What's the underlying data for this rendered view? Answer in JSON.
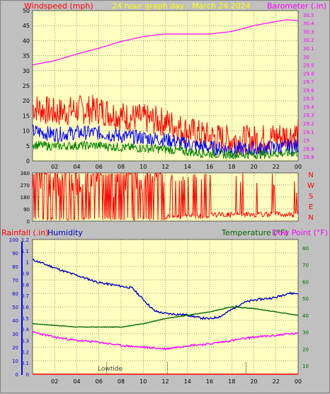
{
  "colors": {
    "plot_bg": "#ffffc0",
    "windspeed": "#ff0000",
    "gust_mid": "#0000ff",
    "wind_low": "#008000",
    "barometer": "#ff00ff",
    "title": "#ffff00",
    "humidity": "#0000c0",
    "temperature": "#006600",
    "dew_point": "#ff00ff",
    "rainfall": "#ff0000"
  },
  "header": {
    "windspeed_label": "Windspeed (mph)",
    "title": "24 hour graph day - March 24 2024",
    "barometer_label": "Barometer (.in)"
  },
  "lower_header": {
    "rainfall_label": "Rainfall (.in)",
    "humidity_label": "Humidity",
    "temperature_label": "Temperature (°F)",
    "dew_point_label": "Dew Point (°F)"
  },
  "chart_data": [
    {
      "type": "line",
      "name": "wind-barometer",
      "x_ticks": [
        "02",
        "04",
        "06",
        "08",
        "10",
        "12",
        "14",
        "16",
        "18",
        "20",
        "22",
        "00"
      ],
      "y_left_ticks": [
        "0",
        "5",
        "10",
        "15",
        "20",
        "25",
        "30",
        "35",
        "40",
        "45",
        "50"
      ],
      "y_right_ticks": [
        "28.8",
        "28.9",
        "29",
        "29.1",
        "29.2",
        "29.3",
        "29.4",
        "29.5",
        "29.6",
        "29.7",
        "29.8",
        "29.9",
        "30",
        "30.1",
        "30.2",
        "30.3",
        "30.4",
        "30.5"
      ],
      "ylim_left": [
        0,
        50
      ],
      "ylim_right": [
        28.75,
        30.55
      ],
      "series": [
        {
          "name": "Windspeed",
          "axis": "left",
          "x": [
            0,
            2,
            4,
            6,
            8,
            10,
            12,
            14,
            16,
            18,
            20,
            22,
            24
          ],
          "values": [
            18,
            16,
            17,
            17,
            15,
            14,
            13,
            10,
            8,
            7,
            7,
            8,
            9
          ]
        },
        {
          "name": "Barometer",
          "axis": "right",
          "x": [
            0,
            2,
            4,
            6,
            8,
            10,
            12,
            14,
            16,
            18,
            20,
            22,
            23,
            24
          ],
          "values": [
            29.9,
            29.95,
            30.03,
            30.1,
            30.18,
            30.24,
            30.27,
            30.27,
            30.27,
            30.3,
            30.37,
            30.42,
            30.44,
            30.43
          ]
        }
      ]
    },
    {
      "type": "scatter",
      "name": "wind-direction",
      "y_left_ticks": [
        "0",
        "90",
        "180",
        "270",
        "360"
      ],
      "y_right_labels": [
        "N",
        "W",
        "S",
        "E",
        "N"
      ],
      "ylim": [
        0,
        360
      ]
    },
    {
      "type": "line",
      "name": "humidity-temperature",
      "x_ticks": [
        "02",
        "04",
        "06",
        "08",
        "10",
        "12",
        "14",
        "16",
        "18",
        "20",
        "22",
        "00"
      ],
      "y_rain_ticks": [
        "0",
        "0.1",
        "0.2",
        "0.3",
        "0.4",
        "0.5",
        "0.6",
        "0.7",
        "0.8",
        "0.9",
        "1",
        "1.1",
        "1.2"
      ],
      "y_humidity_ticks": [
        "0",
        "10",
        "20",
        "30",
        "40",
        "50",
        "60",
        "70",
        "80",
        "90",
        "100"
      ],
      "y_right_ticks": [
        "10",
        "20",
        "30",
        "40",
        "50",
        "60",
        "70",
        "80"
      ],
      "annotation": "Lowtide",
      "ylim_humidity": [
        0,
        100
      ],
      "ylim_temperature": [
        5,
        85
      ],
      "series": [
        {
          "name": "Humidity",
          "x": [
            0,
            1,
            3,
            6,
            9,
            11,
            12,
            14,
            15,
            16,
            17,
            18,
            19,
            20,
            21,
            22,
            23,
            24
          ],
          "values": [
            85,
            82,
            76,
            68,
            64,
            47,
            45,
            44,
            42,
            41,
            43,
            48,
            53,
            55,
            56,
            57,
            60,
            60
          ]
        },
        {
          "name": "Temperature",
          "x": [
            0,
            2,
            4,
            6,
            8,
            10,
            12,
            14,
            16,
            18,
            20,
            22,
            24
          ],
          "values": [
            35,
            34,
            33,
            33,
            33,
            35,
            38,
            40,
            42,
            45,
            44,
            42,
            40
          ]
        },
        {
          "name": "Dew Point",
          "x": [
            0,
            2,
            4,
            6,
            8,
            10,
            12,
            14,
            16,
            18,
            20,
            22,
            23,
            24
          ],
          "values": [
            30,
            27,
            25,
            24,
            22,
            21,
            20,
            22,
            23,
            25,
            27,
            28,
            29,
            29
          ]
        }
      ]
    }
  ]
}
